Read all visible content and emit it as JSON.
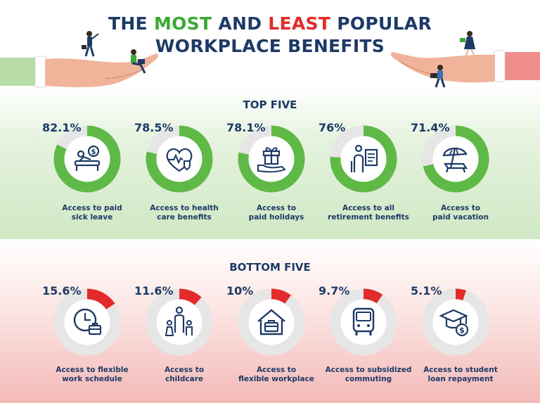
{
  "title": {
    "part1": "THE ",
    "most": "MOST",
    "part2": " AND ",
    "least": "LEAST",
    "part3": " POPULAR",
    "line2": "WORKPLACE BENEFITS"
  },
  "colors": {
    "navy": "#1d3a66",
    "green": "#3aa935",
    "ring_green": "#5fb946",
    "red": "#e32b2b",
    "ring_track": "#e6e6e6"
  },
  "chart_data": [
    {
      "type": "pie",
      "title": "TOP FIVE",
      "categories": [
        "Access to paid sick leave",
        "Access to health care benefits",
        "Access to paid holidays",
        "Access to all retirement benefits",
        "Access to paid vacation"
      ],
      "values": [
        82.1,
        78.5,
        78.1,
        76,
        71.4
      ],
      "value_labels": [
        "82.1%",
        "78.5%",
        "78.1%",
        "76%",
        "71.4%"
      ],
      "labels": [
        [
          "Access to paid",
          "sick leave"
        ],
        [
          "Access to health",
          "care benefits"
        ],
        [
          "Access to",
          "paid holidays"
        ],
        [
          "Access to all",
          "retirement benefits"
        ],
        [
          "Access to",
          "paid vacation"
        ]
      ],
      "icons": [
        "sick-leave-icon",
        "health-care-icon",
        "gift-icon",
        "retirement-icon",
        "vacation-icon"
      ],
      "ylim": [
        0,
        100
      ]
    },
    {
      "type": "pie",
      "title": "BOTTOM FIVE",
      "categories": [
        "Access to flexible work schedule",
        "Access to childcare",
        "Access to flexible workplace",
        "Access to subsidized commuting",
        "Access to student loan repayment"
      ],
      "values": [
        15.6,
        11.6,
        10,
        9.7,
        5.1
      ],
      "value_labels": [
        "15.6%",
        "11.6%",
        "10%",
        "9.7%",
        "5.1%"
      ],
      "labels": [
        [
          "Access to flexible",
          "work schedule"
        ],
        [
          "Access to",
          "childcare"
        ],
        [
          "Access to",
          "flexible workplace"
        ],
        [
          "Access to subsidized",
          "commuting"
        ],
        [
          "Access to student",
          "loan repayment"
        ]
      ],
      "icons": [
        "clock-briefcase-icon",
        "family-icon",
        "house-briefcase-icon",
        "bus-icon",
        "graduation-money-icon"
      ],
      "ylim": [
        0,
        100
      ]
    }
  ]
}
